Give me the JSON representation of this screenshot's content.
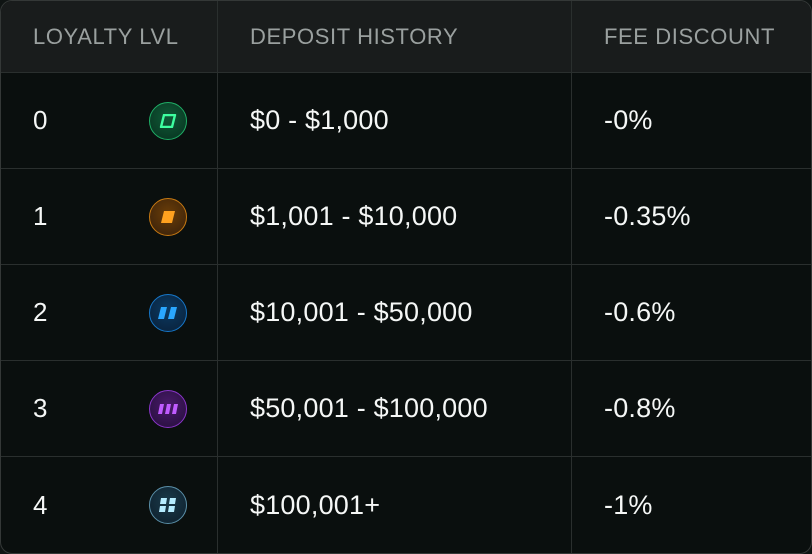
{
  "table": {
    "headers": {
      "loyalty": "LOYALTY LVL",
      "deposit": "DEPOSIT HISTORY",
      "fee": "FEE DISCOUNT"
    },
    "rows": [
      {
        "level": "0",
        "badge_icon": "green-tier-badge-icon",
        "badge_color": "#2ee88a",
        "deposit": "$0 - $1,000",
        "discount": "-0%"
      },
      {
        "level": "1",
        "badge_icon": "orange-tier-badge-icon",
        "badge_color": "#ff9f1c",
        "deposit": "$1,001 - $10,000",
        "discount": "-0.35%"
      },
      {
        "level": "2",
        "badge_icon": "blue-tier-badge-icon",
        "badge_color": "#1e9bff",
        "deposit": "$10,001 - $50,000",
        "discount": "-0.6%"
      },
      {
        "level": "3",
        "badge_icon": "purple-tier-badge-icon",
        "badge_color": "#b44dff",
        "deposit": "$50,001 - $100,000",
        "discount": "-0.8%"
      },
      {
        "level": "4",
        "badge_icon": "ice-tier-badge-icon",
        "badge_color": "#9fe4ff",
        "deposit": "$100,001+",
        "discount": "-1%"
      }
    ]
  }
}
